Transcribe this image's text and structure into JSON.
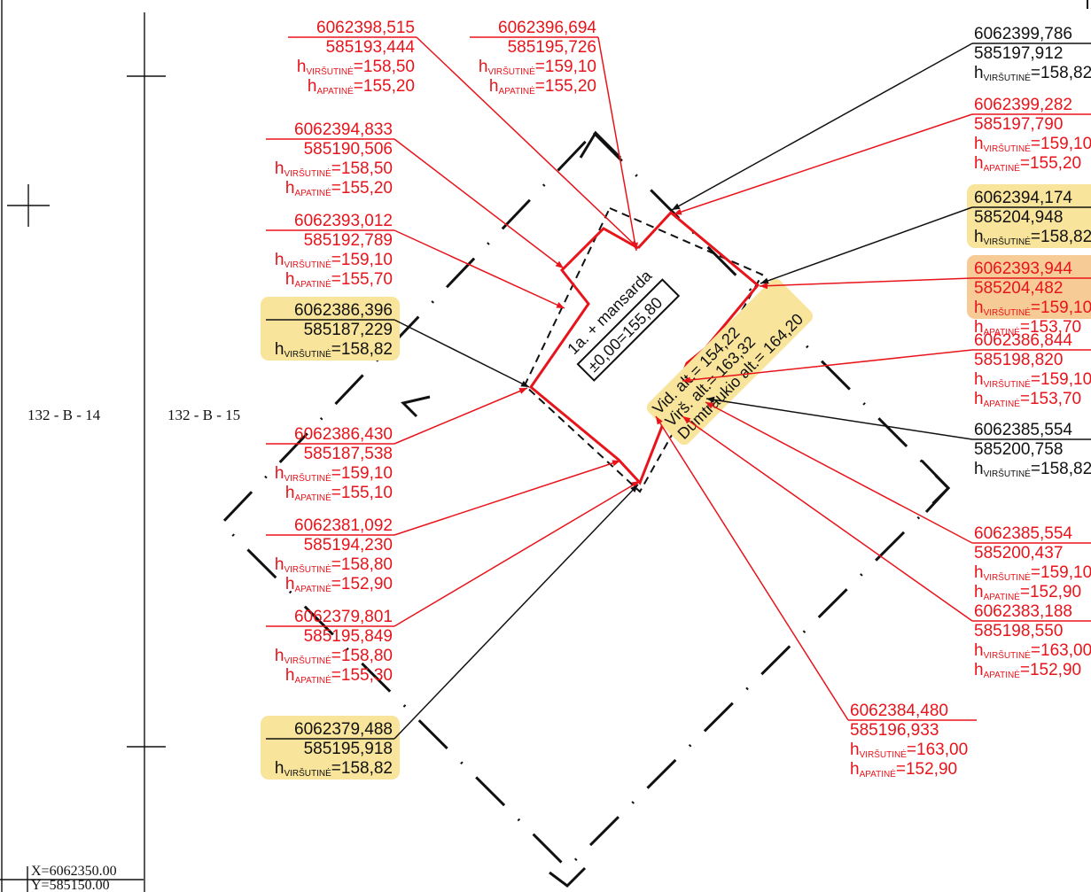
{
  "sheets": {
    "left_sheet": "132 - B - 14",
    "right_sheet": "132 - B - 15"
  },
  "grid_origin": {
    "x": "X=6062350.00",
    "y": "Y=585150.00"
  },
  "building": {
    "name": "1a. + mansarda",
    "zero_level": "±0,00=155,80",
    "alt_avg": "Vid. alt.= 154,22",
    "alt_top": "Virš. alt.= 163,32",
    "alt_chimney": "Dūmtraukio alt.= 164,20"
  },
  "height_labels": {
    "upper": "VIRŠUTINĖ",
    "lower": "APATINĖ"
  },
  "colors": {
    "new_point": "#e8141b",
    "existing_point": "#111111",
    "highlight": "#f8e49a",
    "highlight_red": "#f2a94f"
  },
  "points": [
    {
      "id": "p1",
      "x": "6062398,515",
      "y": "585193,444",
      "h_upper": "=158,50",
      "h_lower": "=155,20",
      "color": "red",
      "highlight": false
    },
    {
      "id": "p2",
      "x": "6062396,694",
      "y": "585195,726",
      "h_upper": "=159,10",
      "h_lower": "=155,20",
      "color": "red",
      "highlight": false
    },
    {
      "id": "p3",
      "x": "6062394,833",
      "y": "585190,506",
      "h_upper": "=158,50",
      "h_lower": "=155,20",
      "color": "red",
      "highlight": false
    },
    {
      "id": "p4",
      "x": "6062393,012",
      "y": "585192,789",
      "h_upper": "=159,10",
      "h_lower": "=155,70",
      "color": "red",
      "highlight": false
    },
    {
      "id": "p5",
      "x": "6062386,396",
      "y": "585187,229",
      "h_upper": "=158,82",
      "h_lower": null,
      "color": "black",
      "highlight": true
    },
    {
      "id": "p6",
      "x": "6062386,430",
      "y": "585187,538",
      "h_upper": "=159,10",
      "h_lower": "=155,10",
      "color": "red",
      "highlight": false
    },
    {
      "id": "p7",
      "x": "6062381,092",
      "y": "585194,230",
      "h_upper": "=158,80",
      "h_lower": "=152,90",
      "color": "red",
      "highlight": false
    },
    {
      "id": "p8",
      "x": "6062379,801",
      "y": "585195,849",
      "h_upper": "=158,80",
      "h_lower": "=155,30",
      "color": "red",
      "highlight": false
    },
    {
      "id": "p9",
      "x": "6062379,488",
      "y": "585195,918",
      "h_upper": "=158,82",
      "h_lower": null,
      "color": "black",
      "highlight": true
    },
    {
      "id": "p10",
      "x": "6062399,786",
      "y": "585197,912",
      "h_upper": "=158,82",
      "h_lower": null,
      "color": "black",
      "highlight": false
    },
    {
      "id": "p11",
      "x": "6062399,282",
      "y": "585197,790",
      "h_upper": "=159,10",
      "h_lower": "=155,20",
      "color": "red",
      "highlight": false
    },
    {
      "id": "p12",
      "x": "6062394,174",
      "y": "585204,948",
      "h_upper": "=158,82",
      "h_lower": null,
      "color": "black",
      "highlight": true
    },
    {
      "id": "p13",
      "x": "6062393,944",
      "y": "585204,482",
      "h_upper": "=159,10",
      "h_lower": "=153,70",
      "color": "red",
      "highlight": true
    },
    {
      "id": "p14",
      "x": "6062386,844",
      "y": "585198,820",
      "h_upper": "=159,10",
      "h_lower": "=153,70",
      "color": "red",
      "highlight": false
    },
    {
      "id": "p15",
      "x": "6062385,554",
      "y": "585200,758",
      "h_upper": "=158,82",
      "h_lower": null,
      "color": "black",
      "highlight": false
    },
    {
      "id": "p16",
      "x": "6062385,554",
      "y": "585200,437",
      "h_upper": "=159,10",
      "h_lower": "=152,90",
      "color": "red",
      "highlight": false
    },
    {
      "id": "p17",
      "x": "6062383,188",
      "y": "585198,550",
      "h_upper": "=163,00",
      "h_lower": "=152,90",
      "color": "red",
      "highlight": false
    },
    {
      "id": "p18",
      "x": "6062384,480",
      "y": "585196,933",
      "h_upper": "=163,00",
      "h_lower": "=152,90",
      "color": "red",
      "highlight": false
    }
  ]
}
